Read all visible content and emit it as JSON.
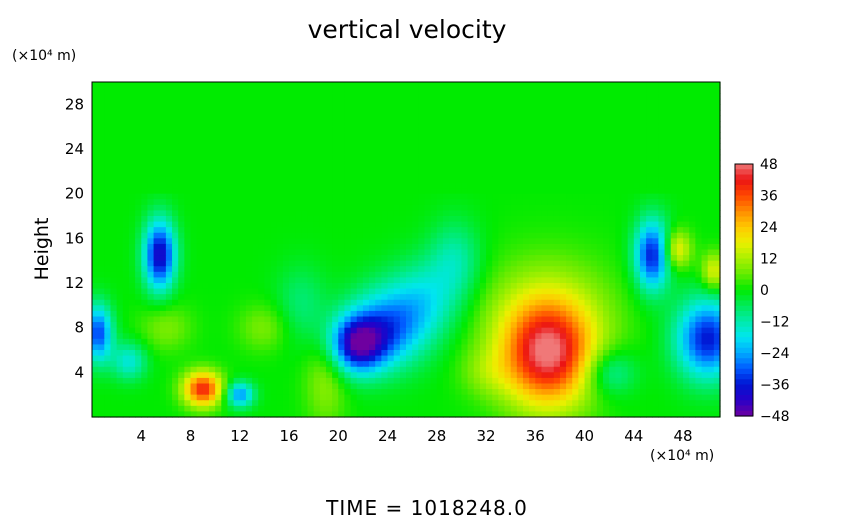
{
  "chart_data": {
    "type": "heatmap",
    "title": "vertical velocity",
    "ylabel": "Height",
    "xunit": "(×10⁴ m)",
    "yunit": "(×10⁴ m)",
    "xlim": [
      0,
      51
    ],
    "ylim": [
      0,
      30
    ],
    "xticks": [
      "4",
      "8",
      "12",
      "16",
      "20",
      "24",
      "28",
      "32",
      "36",
      "40",
      "44",
      "48"
    ],
    "xtick_values": [
      4,
      8,
      12,
      16,
      20,
      24,
      28,
      32,
      36,
      40,
      44,
      48
    ],
    "yticks": [
      "4",
      "8",
      "12",
      "16",
      "20",
      "24",
      "28"
    ],
    "ytick_values": [
      4,
      8,
      12,
      16,
      20,
      24,
      28
    ],
    "colorbar": {
      "labels": [
        "48",
        "36",
        "24",
        "12",
        "0",
        "−12",
        "−24",
        "−36",
        "−48"
      ],
      "values": [
        48,
        36,
        24,
        12,
        0,
        -12,
        -24,
        -36,
        -48
      ],
      "range": [
        -48,
        48
      ]
    },
    "background_value": 0,
    "features": [
      {
        "x": 5.5,
        "y": 14.5,
        "sx": 0.9,
        "sy": 2.2,
        "value": -40
      },
      {
        "x": 9,
        "y": 2.5,
        "sx": 1.1,
        "sy": 1.1,
        "value": 40
      },
      {
        "x": 12,
        "y": 2,
        "sx": 0.8,
        "sy": 0.8,
        "value": -26
      },
      {
        "x": 0.5,
        "y": 7.5,
        "sx": 0.8,
        "sy": 1.8,
        "value": -32
      },
      {
        "x": 21.5,
        "y": 6.5,
        "sx": 1.6,
        "sy": 1.8,
        "value": -40
      },
      {
        "x": 24,
        "y": 8,
        "sx": 2.2,
        "sy": 2.5,
        "value": -26
      },
      {
        "x": 27,
        "y": 10.5,
        "sx": 2,
        "sy": 2.5,
        "value": -14
      },
      {
        "x": 29.5,
        "y": 14,
        "sx": 1.5,
        "sy": 2.5,
        "value": -12
      },
      {
        "x": 37,
        "y": 5.5,
        "sx": 2.6,
        "sy": 3.3,
        "value": 42
      },
      {
        "x": 37,
        "y": 9,
        "sx": 3.8,
        "sy": 3.8,
        "value": 12
      },
      {
        "x": 45.5,
        "y": 14.5,
        "sx": 1,
        "sy": 2.2,
        "value": -36
      },
      {
        "x": 50,
        "y": 7,
        "sx": 1.8,
        "sy": 2.5,
        "value": -36
      },
      {
        "x": 47.5,
        "y": 15,
        "sx": 0.8,
        "sy": 1.2,
        "value": 20
      },
      {
        "x": 50.5,
        "y": 13,
        "sx": 0.7,
        "sy": 1.2,
        "value": 18
      },
      {
        "x": 19,
        "y": 3.5,
        "sx": 1.2,
        "sy": 3,
        "value": 10
      },
      {
        "x": 17,
        "y": 10,
        "sx": 1.5,
        "sy": 2.5,
        "value": -8
      },
      {
        "x": 3,
        "y": 5,
        "sx": 1,
        "sy": 1.2,
        "value": -16
      },
      {
        "x": 6,
        "y": 8,
        "sx": 1.5,
        "sy": 1.5,
        "value": 8
      },
      {
        "x": 14,
        "y": 8,
        "sx": 1.5,
        "sy": 1.5,
        "value": 8
      },
      {
        "x": 42,
        "y": 4,
        "sx": 1.5,
        "sy": 1.5,
        "value": -14
      },
      {
        "x": 32,
        "y": 4,
        "sx": 1.5,
        "sy": 1.5,
        "value": 6
      }
    ]
  },
  "footer": {
    "time_label": "TIME  =  1018248.0"
  }
}
